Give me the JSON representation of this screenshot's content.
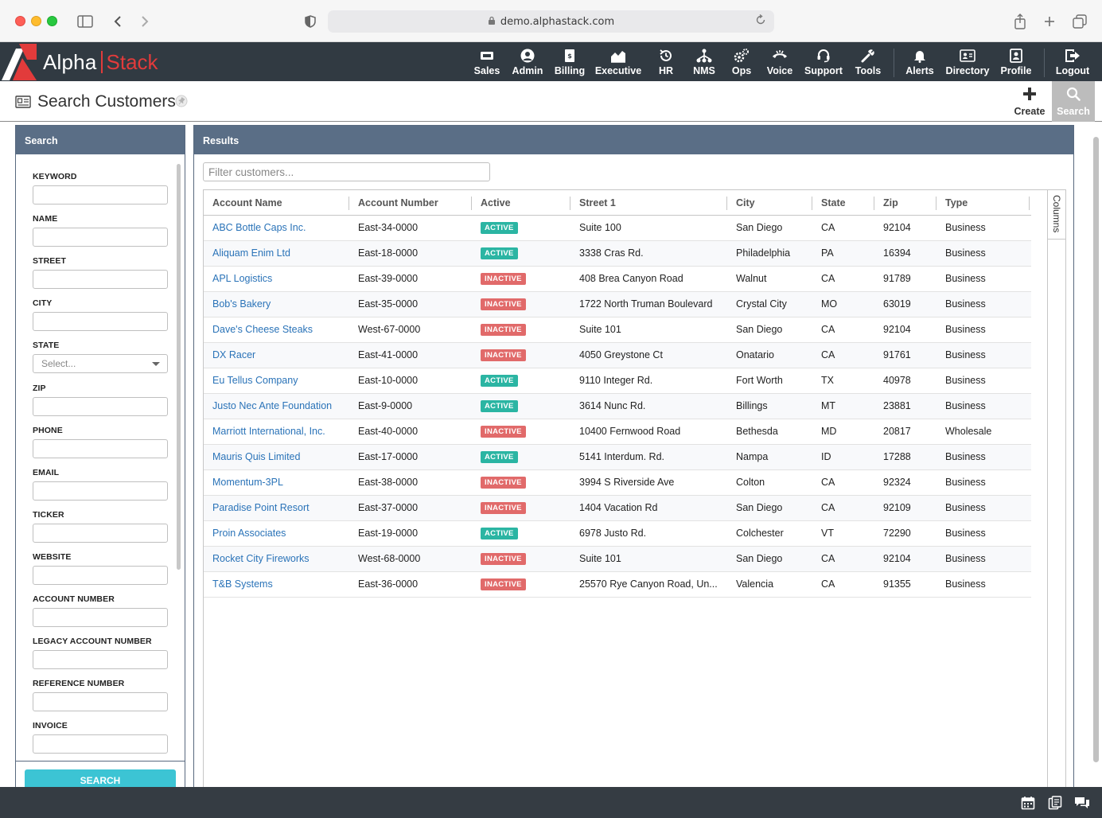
{
  "browser": {
    "url": "demo.alphastack.com",
    "icons": [
      "sidebar-icon",
      "back-icon",
      "forward-icon",
      "shield-icon",
      "lock-icon",
      "reload-icon",
      "share-icon",
      "new-tab-icon",
      "tabs-icon"
    ]
  },
  "brand": {
    "word1": "Alpha",
    "word2": "Stack",
    "accent": "#e23b3b"
  },
  "nav": {
    "items": [
      {
        "label": "Sales",
        "icon": "sales-icon"
      },
      {
        "label": "Admin",
        "icon": "admin-icon"
      },
      {
        "label": "Billing",
        "icon": "billing-icon"
      },
      {
        "label": "Executive",
        "icon": "executive-icon"
      },
      {
        "label": "HR",
        "icon": "hr-icon"
      },
      {
        "label": "NMS",
        "icon": "nms-icon"
      },
      {
        "label": "Ops",
        "icon": "ops-icon"
      },
      {
        "label": "Voice",
        "icon": "voice-icon"
      },
      {
        "label": "Support",
        "icon": "support-icon"
      },
      {
        "label": "Tools",
        "icon": "tools-icon"
      },
      {
        "label": "Alerts",
        "icon": "bell-icon"
      },
      {
        "label": "Directory",
        "icon": "directory-icon"
      },
      {
        "label": "Profile",
        "icon": "profile-icon"
      },
      {
        "label": "Logout",
        "icon": "logout-icon"
      }
    ]
  },
  "page": {
    "title": "Search Customers",
    "create_label": "Create",
    "search_label": "Search"
  },
  "search_panel": {
    "title": "Search",
    "fields": [
      {
        "label": "KEYWORD",
        "value": ""
      },
      {
        "label": "NAME",
        "value": ""
      },
      {
        "label": "STREET",
        "value": ""
      },
      {
        "label": "CITY",
        "value": ""
      },
      {
        "label": "STATE",
        "value": "",
        "placeholder": "Select..."
      },
      {
        "label": "ZIP",
        "value": ""
      },
      {
        "label": "PHONE",
        "value": ""
      },
      {
        "label": "EMAIL",
        "value": ""
      },
      {
        "label": "TICKER",
        "value": ""
      },
      {
        "label": "WEBSITE",
        "value": ""
      },
      {
        "label": "ACCOUNT NUMBER",
        "value": ""
      },
      {
        "label": "LEGACY ACCOUNT NUMBER",
        "value": ""
      },
      {
        "label": "REFERENCE NUMBER",
        "value": ""
      },
      {
        "label": "INVOICE",
        "value": ""
      }
    ],
    "submit_label": "SEARCH"
  },
  "results": {
    "title": "Results",
    "filter_placeholder": "Filter customers...",
    "columns_label": "Columns",
    "columns": [
      "Account Name",
      "Account Number",
      "Active",
      "Street 1",
      "City",
      "State",
      "Zip",
      "Type"
    ],
    "rows": [
      {
        "name": "ABC Bottle Caps Inc.",
        "number": "East-34-0000",
        "active": "ACTIVE",
        "street": "Suite 100",
        "city": "San Diego",
        "state": "CA",
        "zip": "92104",
        "type": "Business"
      },
      {
        "name": "Aliquam Enim Ltd",
        "number": "East-18-0000",
        "active": "ACTIVE",
        "street": "3338 Cras Rd.",
        "city": "Philadelphia",
        "state": "PA",
        "zip": "16394",
        "type": "Business"
      },
      {
        "name": "APL Logistics",
        "number": "East-39-0000",
        "active": "INACTIVE",
        "street": "408 Brea Canyon Road",
        "city": "Walnut",
        "state": "CA",
        "zip": "91789",
        "type": "Business"
      },
      {
        "name": "Bob's Bakery",
        "number": "East-35-0000",
        "active": "INACTIVE",
        "street": "1722 North Truman Boulevard",
        "city": "Crystal City",
        "state": "MO",
        "zip": "63019",
        "type": "Business"
      },
      {
        "name": "Dave's Cheese Steaks",
        "number": "West-67-0000",
        "active": "INACTIVE",
        "street": "Suite 101",
        "city": "San Diego",
        "state": "CA",
        "zip": "92104",
        "type": "Business"
      },
      {
        "name": "DX Racer",
        "number": "East-41-0000",
        "active": "INACTIVE",
        "street": "4050 Greystone Ct",
        "city": "Onatario",
        "state": "CA",
        "zip": "91761",
        "type": "Business"
      },
      {
        "name": "Eu Tellus Company",
        "number": "East-10-0000",
        "active": "ACTIVE",
        "street": "9110 Integer Rd.",
        "city": "Fort Worth",
        "state": "TX",
        "zip": "40978",
        "type": "Business"
      },
      {
        "name": "Justo Nec Ante Foundation",
        "number": "East-9-0000",
        "active": "ACTIVE",
        "street": "3614 Nunc Rd.",
        "city": "Billings",
        "state": "MT",
        "zip": "23881",
        "type": "Business"
      },
      {
        "name": "Marriott International, Inc.",
        "number": "East-40-0000",
        "active": "INACTIVE",
        "street": "10400 Fernwood Road",
        "city": "Bethesda",
        "state": "MD",
        "zip": "20817",
        "type": "Wholesale"
      },
      {
        "name": "Mauris Quis Limited",
        "number": "East-17-0000",
        "active": "ACTIVE",
        "street": "5141 Interdum. Rd.",
        "city": "Nampa",
        "state": "ID",
        "zip": "17288",
        "type": "Business"
      },
      {
        "name": "Momentum-3PL",
        "number": "East-38-0000",
        "active": "INACTIVE",
        "street": "3994 S Riverside Ave",
        "city": "Colton",
        "state": "CA",
        "zip": "92324",
        "type": "Business"
      },
      {
        "name": "Paradise Point Resort",
        "number": "East-37-0000",
        "active": "INACTIVE",
        "street": "1404 Vacation Rd",
        "city": "San Diego",
        "state": "CA",
        "zip": "92109",
        "type": "Business"
      },
      {
        "name": "Proin Associates",
        "number": "East-19-0000",
        "active": "ACTIVE",
        "street": "6978 Justo Rd.",
        "city": "Colchester",
        "state": "VT",
        "zip": "72290",
        "type": "Business"
      },
      {
        "name": "Rocket City Fireworks",
        "number": "West-68-0000",
        "active": "INACTIVE",
        "street": "Suite 101",
        "city": "San Diego",
        "state": "CA",
        "zip": "92104",
        "type": "Business"
      },
      {
        "name": "T&B Systems",
        "number": "East-36-0000",
        "active": "INACTIVE",
        "street": "25570 Rye Canyon Road, Un...",
        "city": "Valencia",
        "state": "CA",
        "zip": "91355",
        "type": "Business"
      }
    ]
  },
  "footer": {
    "icons": [
      "calendar-icon",
      "notes-icon",
      "chat-icon"
    ]
  },
  "colors": {
    "nav_bg": "#313a42",
    "panel_header": "#5a6e86",
    "active": "#2bb5a3",
    "inactive": "#e16a6a",
    "link": "#2a73b8",
    "search_button": "#3cc4d4"
  }
}
